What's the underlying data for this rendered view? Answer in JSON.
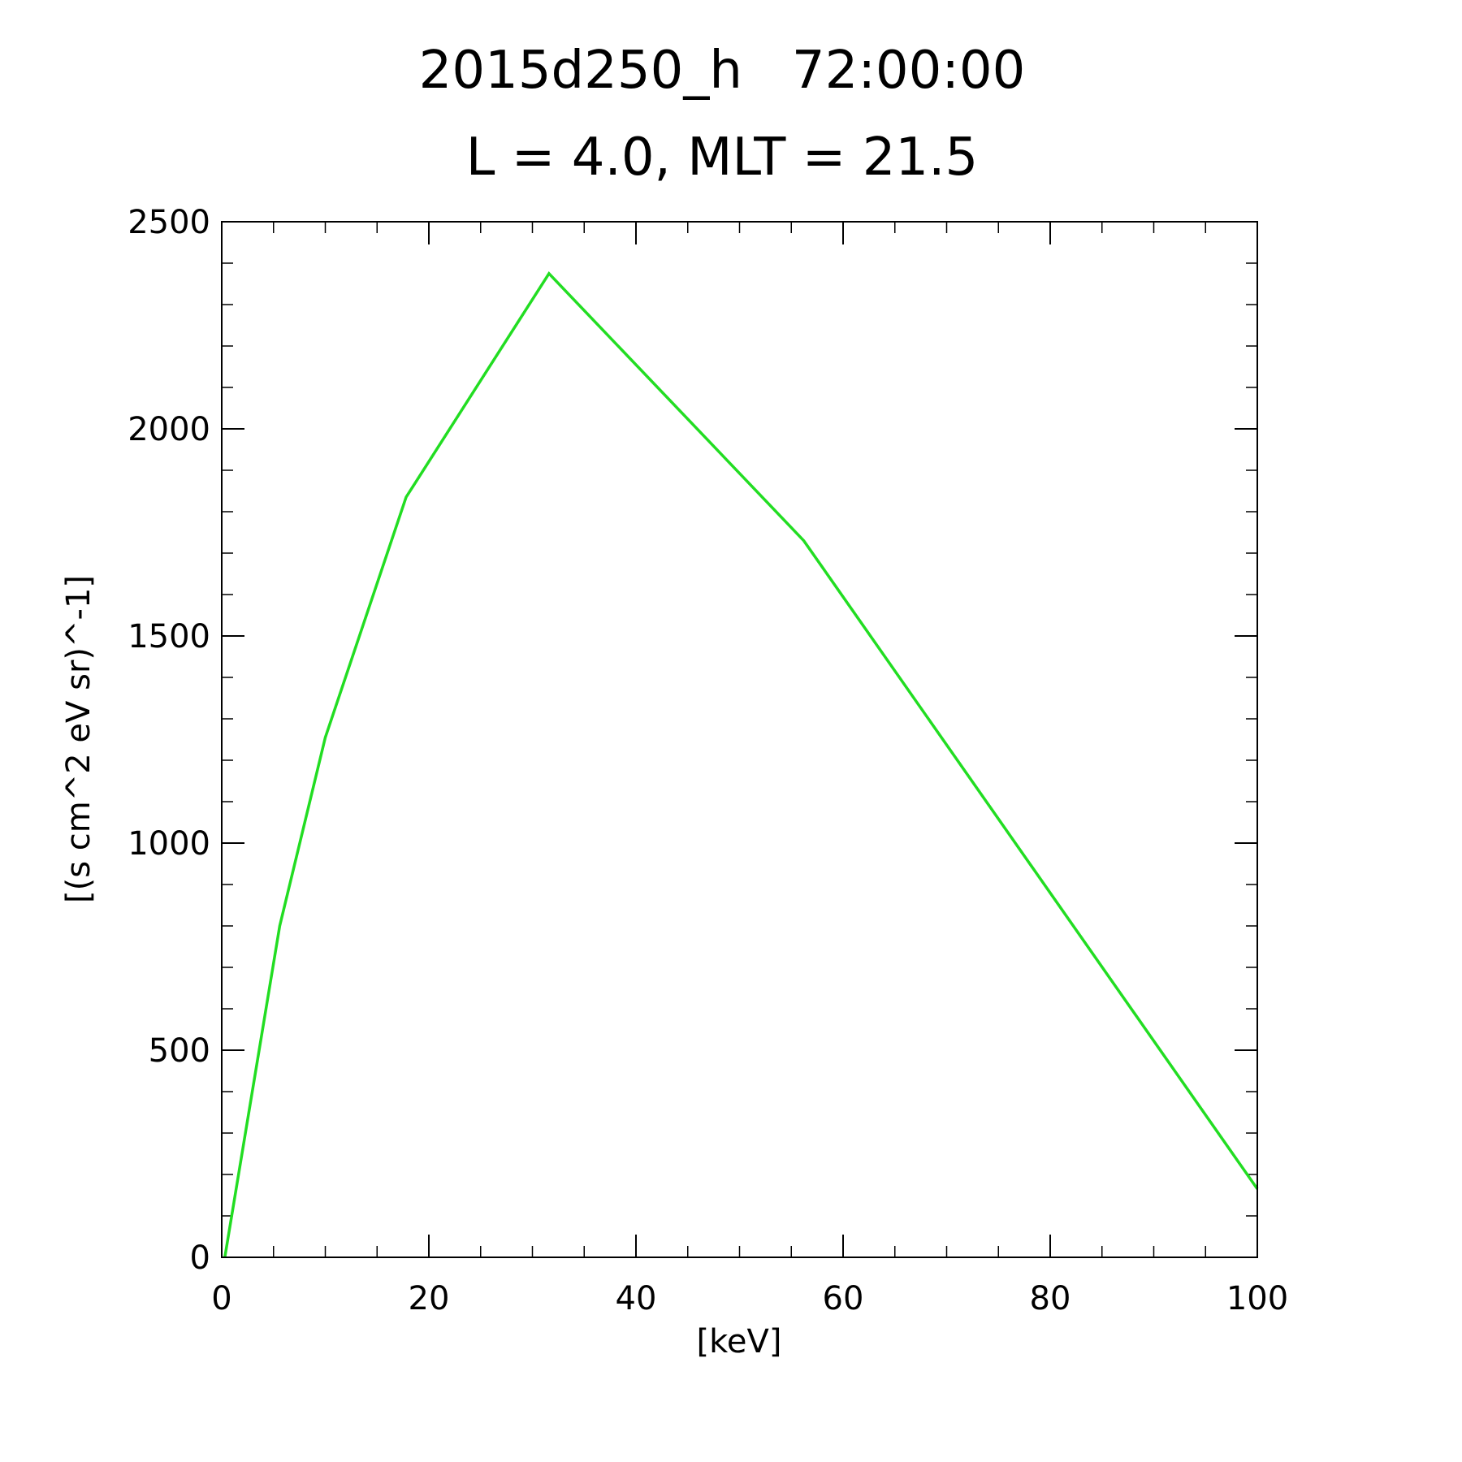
{
  "chart_data": {
    "type": "line",
    "title": "2015d250_h   72:00:00",
    "subtitle": "L = 4.0, MLT = 21.5",
    "xlabel": "[keV]",
    "ylabel": "[(s cm^2 eV sr)^-1]",
    "xlim": [
      0,
      100
    ],
    "ylim": [
      0,
      2500
    ],
    "xticks": [
      0,
      20,
      40,
      60,
      80,
      100
    ],
    "yticks": [
      0,
      500,
      1000,
      1500,
      2000,
      2500
    ],
    "x_minor_step": 5,
    "y_minor_step": 100,
    "grid": false,
    "series": [
      {
        "color": "#22dd22",
        "x": [
          0.3,
          5.6,
          10,
          17.8,
          31.6,
          56.2,
          100
        ],
        "y": [
          0,
          800,
          1255,
          1835,
          2375,
          1730,
          165
        ]
      }
    ]
  }
}
